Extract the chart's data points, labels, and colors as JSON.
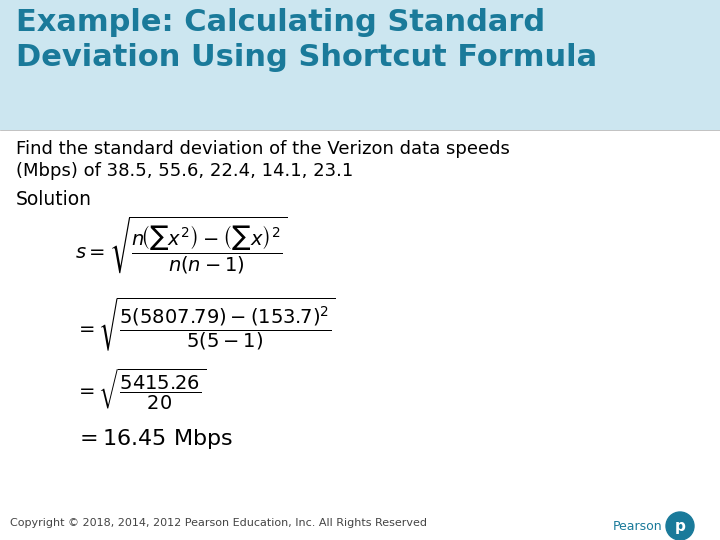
{
  "title_line1": "Example: Calculating Standard",
  "title_line2": "Deviation Using Shortcut Formula",
  "title_color": "#1a7a9a",
  "title_fontsize": 22,
  "body_fontsize": 13,
  "solution_fontsize": 13.5,
  "formula_fontsize": 14,
  "final_fontsize": 16,
  "copyright_fontsize": 8,
  "body_text1": "Find the standard deviation of the Verizon data speeds",
  "body_text2": "(Mbps) of 38.5, 55.6, 22.4, 14.1, 23.1",
  "solution_label": "Solution",
  "copyright": "Copyright © 2018, 2014, 2012 Pearson Education, Inc. All Rights Reserved",
  "bg_color": "#ffffff",
  "text_color": "#000000",
  "title_bg_color": "#cce6f0",
  "pearson_color": "#1a7a9a",
  "fig_width": 7.2,
  "fig_height": 5.4,
  "dpi": 100
}
